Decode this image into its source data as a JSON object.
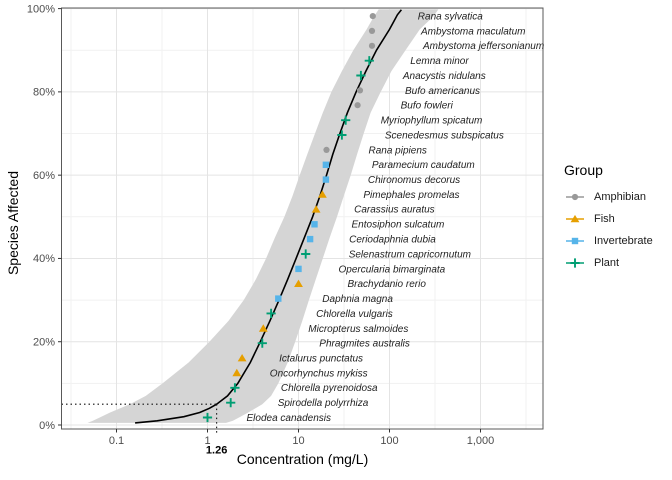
{
  "figure": {
    "x_axis": {
      "label": "Concentration (mg/L)",
      "scale": "log10",
      "ticks": [
        "0.1",
        "1",
        "10",
        "100",
        "1,000"
      ],
      "tick_values": [
        0.1,
        1,
        10,
        100,
        1000
      ],
      "minor_tick_values": [
        0.0316,
        0.316,
        3.16,
        31.6,
        316,
        3160
      ],
      "annotation_tick": {
        "label": "1.26",
        "value": 1.26
      }
    },
    "y_axis": {
      "label": "Species Affected",
      "ticks": [
        "0%",
        "20%",
        "40%",
        "60%",
        "80%",
        "100%"
      ],
      "tick_values": [
        0,
        20,
        40,
        60,
        80,
        100
      ],
      "minor_tick_values": [
        10,
        30,
        50,
        70,
        90
      ]
    },
    "legend": {
      "title": "Group",
      "entries": [
        {
          "label": "Amphibian",
          "color": "#999999",
          "shape": "circle"
        },
        {
          "label": "Fish",
          "color": "#E69F00",
          "shape": "triangle"
        },
        {
          "label": "Invertebrate",
          "color": "#56B4E9",
          "shape": "square"
        },
        {
          "label": "Plant",
          "color": "#009E73",
          "shape": "plus"
        }
      ]
    }
  },
  "chart_data": {
    "type": "scatter",
    "title": "",
    "xlabel": "Concentration (mg/L)",
    "ylabel": "Species Affected",
    "x_scale": "log10",
    "xlim": [
      0.025,
      4800
    ],
    "ylim_percent": [
      -1,
      101
    ],
    "grid": "on",
    "legend_position": "right",
    "hc5": {
      "percent": 5,
      "concentration": 1.26,
      "label": "1.26"
    },
    "band_color": "#d5d5d5",
    "curve_color": "#000000",
    "group_styles": {
      "Amphibian": {
        "color": "#999999",
        "shape": "circle"
      },
      "Fish": {
        "color": "#E69F00",
        "shape": "triangle"
      },
      "Invertebrate": {
        "color": "#56B4E9",
        "shape": "square"
      },
      "Plant": {
        "color": "#009E73",
        "shape": "plus"
      }
    },
    "points": [
      {
        "species": "Elodea canadensis",
        "group": "Plant",
        "conc_mg_L": 1.0,
        "percent_affected": 1.79
      },
      {
        "species": "Spirodella polyrrhiza",
        "group": "Plant",
        "conc_mg_L": 1.8,
        "percent_affected": 5.36
      },
      {
        "species": "Chlorella pyrenoidosa",
        "group": "Plant",
        "conc_mg_L": 2.0,
        "percent_affected": 8.93
      },
      {
        "species": "Oncorhynchus mykiss",
        "group": "Fish",
        "conc_mg_L": 2.1,
        "percent_affected": 12.5
      },
      {
        "species": "Ictalurus punctatus",
        "group": "Fish",
        "conc_mg_L": 2.4,
        "percent_affected": 16.07
      },
      {
        "species": "Phragmites australis",
        "group": "Plant",
        "conc_mg_L": 4.0,
        "percent_affected": 19.64
      },
      {
        "species": "Micropterus salmoides",
        "group": "Fish",
        "conc_mg_L": 4.1,
        "percent_affected": 23.21
      },
      {
        "species": "Chlorella vulgaris",
        "group": "Plant",
        "conc_mg_L": 5.0,
        "percent_affected": 26.79
      },
      {
        "species": "Daphnia magna",
        "group": "Invertebrate",
        "conc_mg_L": 6.0,
        "percent_affected": 30.36
      },
      {
        "species": "Brachydanio rerio",
        "group": "Fish",
        "conc_mg_L": 10.0,
        "percent_affected": 33.93
      },
      {
        "species": "Opercularia bimarginata",
        "group": "Invertebrate",
        "conc_mg_L": 10.0,
        "percent_affected": 37.5
      },
      {
        "species": "Selenastrum capricornutum",
        "group": "Plant",
        "conc_mg_L": 12.0,
        "percent_affected": 41.07
      },
      {
        "species": "Ceriodaphnia dubia",
        "group": "Invertebrate",
        "conc_mg_L": 13.4,
        "percent_affected": 44.64
      },
      {
        "species": "Entosiphon sulcatum",
        "group": "Invertebrate",
        "conc_mg_L": 15.0,
        "percent_affected": 48.21
      },
      {
        "species": "Carassius auratus",
        "group": "Fish",
        "conc_mg_L": 15.6,
        "percent_affected": 51.79
      },
      {
        "species": "Pimephales promelas",
        "group": "Fish",
        "conc_mg_L": 18.3,
        "percent_affected": 55.36
      },
      {
        "species": "Chironomus decorus",
        "group": "Invertebrate",
        "conc_mg_L": 20.0,
        "percent_affected": 58.93
      },
      {
        "species": "Paramecium caudatum",
        "group": "Invertebrate",
        "conc_mg_L": 20.0,
        "percent_affected": 62.5
      },
      {
        "species": "Rana pipiens",
        "group": "Amphibian",
        "conc_mg_L": 20.3,
        "percent_affected": 66.07
      },
      {
        "species": "Scenedesmus subspicatus",
        "group": "Plant",
        "conc_mg_L": 30.0,
        "percent_affected": 69.64
      },
      {
        "species": "Myriophyllum spicatum",
        "group": "Plant",
        "conc_mg_L": 33.0,
        "percent_affected": 73.21
      },
      {
        "species": "Bufo fowleri",
        "group": "Amphibian",
        "conc_mg_L": 44.6,
        "percent_affected": 76.79
      },
      {
        "species": "Bufo americanus",
        "group": "Amphibian",
        "conc_mg_L": 47.4,
        "percent_affected": 80.36
      },
      {
        "species": "Anacystis nidulans",
        "group": "Plant",
        "conc_mg_L": 48.5,
        "percent_affected": 83.93
      },
      {
        "species": "Lemna minor",
        "group": "Plant",
        "conc_mg_L": 60.0,
        "percent_affected": 87.5
      },
      {
        "species": "Ambystoma jeffersonianum",
        "group": "Amphibian",
        "conc_mg_L": 64.2,
        "percent_affected": 91.07
      },
      {
        "species": "Ambystoma maculatum",
        "group": "Amphibian",
        "conc_mg_L": 64.2,
        "percent_affected": 94.64
      },
      {
        "species": "Rana sylvatica",
        "group": "Amphibian",
        "conc_mg_L": 65.5,
        "percent_affected": 98.21
      }
    ],
    "fit_curve": [
      [
        0.5,
        0.16
      ],
      [
        1,
        0.28
      ],
      [
        2,
        0.55
      ],
      [
        3,
        0.82
      ],
      [
        4,
        1.05
      ],
      [
        5,
        1.26
      ],
      [
        7,
        1.66
      ],
      [
        10,
        2.15
      ],
      [
        15,
        2.95
      ],
      [
        20,
        3.8
      ],
      [
        25,
        4.85
      ],
      [
        30,
        6.1
      ],
      [
        35,
        7.6
      ],
      [
        40,
        9.4
      ],
      [
        45,
        11.6
      ],
      [
        50,
        14.3
      ],
      [
        55,
        17.2
      ],
      [
        60,
        20.3
      ],
      [
        65,
        23.8
      ],
      [
        70,
        28.5
      ],
      [
        75,
        34.5
      ],
      [
        80,
        43
      ],
      [
        85,
        55
      ],
      [
        90,
        72
      ],
      [
        95,
        100
      ],
      [
        97,
        112
      ],
      [
        98.5,
        122
      ],
      [
        99.7,
        135
      ]
    ],
    "confidence_band": [
      [
        0.5,
        0.048,
        1.6
      ],
      [
        1,
        0.055,
        1.9
      ],
      [
        2,
        0.068,
        2.3
      ],
      [
        3,
        0.085,
        2.8
      ],
      [
        5,
        0.14,
        4.0
      ],
      [
        7,
        0.21,
        5.0
      ],
      [
        10,
        0.32,
        6.0
      ],
      [
        15,
        0.62,
        7.6
      ],
      [
        20,
        1.05,
        9.2
      ],
      [
        25,
        1.7,
        11
      ],
      [
        30,
        2.5,
        13
      ],
      [
        35,
        3.4,
        15.5
      ],
      [
        40,
        4.4,
        18.5
      ],
      [
        45,
        5.5,
        22
      ],
      [
        50,
        7.0,
        26.5
      ],
      [
        55,
        8.6,
        31.5
      ],
      [
        60,
        10.3,
        37.5
      ],
      [
        65,
        12.5,
        44
      ],
      [
        70,
        15.2,
        52
      ],
      [
        75,
        18.5,
        62
      ],
      [
        80,
        23,
        80
      ],
      [
        85,
        30,
        105
      ],
      [
        90,
        40,
        150
      ],
      [
        95,
        56,
        215
      ],
      [
        98,
        67,
        300
      ],
      [
        99.8,
        76,
        345
      ]
    ]
  }
}
